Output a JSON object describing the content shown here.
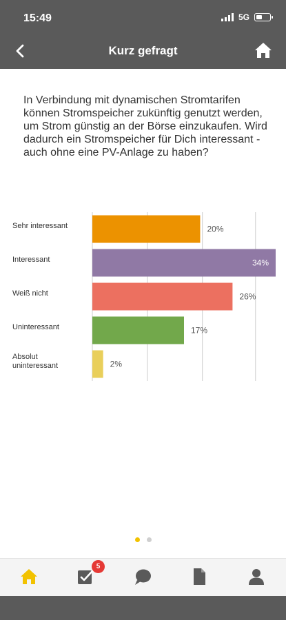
{
  "status": {
    "time": "15:49",
    "network": "5G"
  },
  "nav": {
    "title": "Kurz gefragt"
  },
  "question": "In Verbindung mit dynamischen Stromtarifen können Stromspeicher zukünftig genutzt werden, um Strom günstig an der Börse einzukaufen. Wird dadurch ein Stromspeicher für Dich interessant - auch ohne eine PV-Anlage zu haben?",
  "chart_data": {
    "type": "bar",
    "orientation": "horizontal",
    "categories": [
      "Sehr interessant",
      "Interessant",
      "Weiß nicht",
      "Uninteressant",
      "Absolut uninteressant"
    ],
    "values": [
      20,
      34,
      26,
      17,
      2
    ],
    "value_labels": [
      "20%",
      "34%",
      "26%",
      "17%",
      "2%"
    ],
    "colors": [
      "#ec9200",
      "#9079a5",
      "#ec7060",
      "#72a84b",
      "#e9cf5b"
    ],
    "xlim": [
      0,
      34
    ],
    "grid": true
  },
  "pager": {
    "count": 2,
    "active": 0,
    "active_color": "#f2c200",
    "inactive_color": "#cfcfcf"
  },
  "tabs": [
    {
      "icon": "home-icon",
      "active": true
    },
    {
      "icon": "tasks-check-icon",
      "badge": "5"
    },
    {
      "icon": "chat-bubble-icon"
    },
    {
      "icon": "document-icon"
    },
    {
      "icon": "user-profile-icon"
    }
  ],
  "colors": {
    "bar_bg": "#5a5a5a",
    "accent": "#f2c200",
    "icon": "#5a5a5a"
  }
}
